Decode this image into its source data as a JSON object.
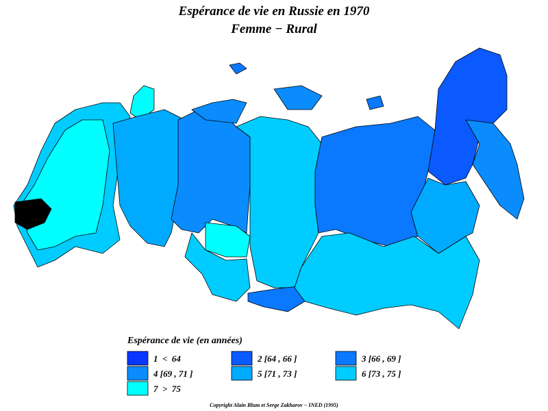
{
  "header": {
    "title": "Espérance de vie en Russie en 1970",
    "subtitle": "Femme − Rural"
  },
  "legend": {
    "title": "Espérance de vie (en années)",
    "items": [
      {
        "label": "1  <  64",
        "color": "#0a37ff"
      },
      {
        "label": "2 [64 , 66 ]",
        "color": "#0a5aff"
      },
      {
        "label": "3 [66 , 69 ]",
        "color": "#0a78ff"
      },
      {
        "label": "4 [69 , 71 ]",
        "color": "#0a8cff"
      },
      {
        "label": "5 [71 , 73 ]",
        "color": "#00aaff"
      },
      {
        "label": "6 [73 , 75 ]",
        "color": "#00ccff"
      },
      {
        "label": "7  >  75",
        "color": "#00ffff"
      }
    ]
  },
  "footer": {
    "copyright": "Copyright Alain Blum et Serge Zakharov − INED (1995)"
  }
}
